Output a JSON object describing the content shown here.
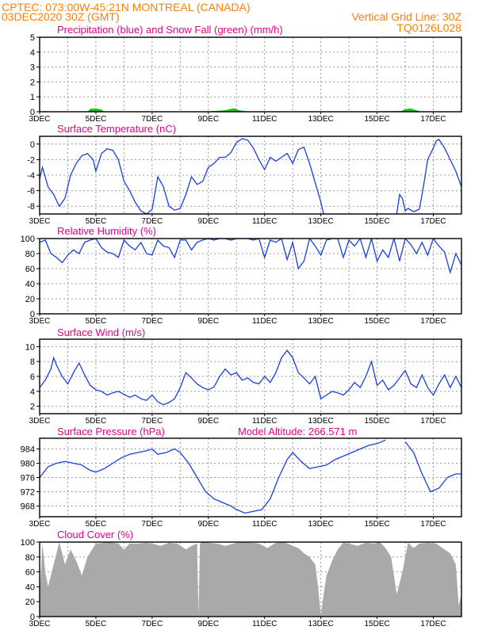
{
  "header": {
    "line1": "CPTEC:   073:00W-45:21N   MONTREAL (CANADA)",
    "line2": "03DEC2020 30Z (GMT)",
    "grid_note": "Vertical Grid Line: 30Z",
    "code": "TQ0126L028"
  },
  "colors": {
    "header_text": "#ff8000",
    "title_text": "#e8008c",
    "series_line": "#1a3fe0",
    "snow": "#1fbf1f",
    "cloud_fill": "#a9a9a9",
    "grid": "#9a9a9a"
  },
  "x_axis": {
    "tick_labels": [
      "3DEC",
      "5DEC",
      "7DEC",
      "9DEC",
      "11DEC",
      "13DEC",
      "15DEC",
      "17DEC"
    ],
    "range_days": [
      3,
      18
    ],
    "tick_days": [
      3,
      5,
      7,
      9,
      11,
      13,
      15,
      17
    ]
  },
  "chart_data": [
    {
      "id": "precip",
      "type": "area",
      "title": "Precipitation (blue) and Snow Fall (green) (mm/h)",
      "ylim": [
        0,
        5
      ],
      "yticks": [
        0,
        1,
        2,
        3,
        4,
        5
      ],
      "grid": true,
      "series": [
        {
          "name": "Precipitation",
          "color": "blue",
          "x": [
            3,
            4.8,
            5.0,
            5.2,
            9.0,
            9.7,
            9.9,
            10.2,
            13.8,
            16.0,
            16.4,
            18
          ],
          "values": [
            0,
            0,
            0.02,
            0,
            0,
            0.03,
            0.04,
            0,
            0,
            0.05,
            0,
            0
          ]
        },
        {
          "name": "Snow Fall",
          "color": "green",
          "x": [
            3,
            3.2,
            3.4,
            4.7,
            4.8,
            5.0,
            5.2,
            5.3,
            8.8,
            9.6,
            9.8,
            9.95,
            10.1,
            10.3,
            10.5,
            15.8,
            16.0,
            16.2,
            16.4,
            16.6,
            18
          ],
          "values": [
            0,
            0.05,
            0,
            0,
            0.2,
            0.22,
            0.15,
            0,
            0,
            0.1,
            0.2,
            0.22,
            0.1,
            0.05,
            0,
            0,
            0.18,
            0.22,
            0.1,
            0,
            0
          ]
        }
      ]
    },
    {
      "id": "temp",
      "type": "line",
      "title": "Surface Temperature (nC)",
      "ylim": [
        -9,
        1
      ],
      "yticks": [
        0,
        -2,
        -4,
        -6,
        -8
      ],
      "grid": true,
      "series": [
        {
          "x": [
            3.0,
            3.1,
            3.3,
            3.5,
            3.7,
            3.9,
            4.1,
            4.3,
            4.5,
            4.7,
            4.9,
            5.0,
            5.2,
            5.4,
            5.6,
            5.8,
            6.0,
            6.2,
            6.4,
            6.6,
            6.8,
            7.0,
            7.2,
            7.4,
            7.6,
            7.8,
            8.0,
            8.2,
            8.4,
            8.6,
            8.8,
            9.0,
            9.2,
            9.4,
            9.6,
            9.8,
            10.0,
            10.2,
            10.4,
            10.6,
            10.8,
            11.0,
            11.2,
            11.4,
            11.6,
            11.8,
            12.0,
            12.2,
            12.4,
            12.6,
            12.8,
            13.0,
            13.1
          ],
          "values": [
            -4.5,
            -3,
            -5.5,
            -6.5,
            -8,
            -7,
            -4,
            -2.5,
            -1.5,
            -1.2,
            -2,
            -3.5,
            -1.2,
            -0.6,
            -0.8,
            -2,
            -4.8,
            -6,
            -7.5,
            -8.6,
            -9,
            -8.4,
            -4.2,
            -5.5,
            -8,
            -8.5,
            -8.3,
            -6.5,
            -4.2,
            -5.2,
            -4.8,
            -3,
            -2.5,
            -1.7,
            -1.7,
            -1.1,
            0.2,
            0.7,
            0.5,
            -0.5,
            -2,
            -3.3,
            -1.7,
            -2.2,
            -1.7,
            -1.2,
            -2.5,
            -0.7,
            -0.4,
            -2.5,
            -5,
            -7.5,
            -9
          ]
        },
        {
          "x": [
            15.7,
            15.8,
            15.9,
            16.0,
            16.1,
            16.3,
            16.5,
            16.6,
            16.7,
            16.8,
            17.0,
            17.1,
            17.2,
            17.4,
            17.6,
            17.8,
            18.0
          ],
          "values": [
            -9,
            -6.5,
            -7,
            -8.6,
            -8.3,
            -8.7,
            -8.4,
            -6.5,
            -4.3,
            -2,
            -0.5,
            0.4,
            0.6,
            -0.5,
            -2,
            -3.5,
            -5.5
          ]
        }
      ]
    },
    {
      "id": "rh",
      "type": "line",
      "title": "Relative Humidity (%)",
      "ylim": [
        0,
        100
      ],
      "yticks": [
        0,
        20,
        40,
        60,
        80,
        100
      ],
      "grid": true,
      "series": [
        {
          "x": [
            3.0,
            3.2,
            3.4,
            3.6,
            3.8,
            4.0,
            4.2,
            4.4,
            4.6,
            4.8,
            5.0,
            5.2,
            5.4,
            5.6,
            5.8,
            6.0,
            6.2,
            6.4,
            6.6,
            6.8,
            7.0,
            7.2,
            7.4,
            7.6,
            7.8,
            8.0,
            8.2,
            8.4,
            8.6,
            8.8,
            9.0,
            9.2,
            9.4,
            9.6,
            9.8,
            10.0,
            10.2,
            10.4,
            10.6,
            10.8,
            11.0,
            11.2,
            11.4,
            11.6,
            11.8,
            12.0,
            12.2,
            12.4,
            12.6,
            12.8,
            13.0,
            13.2,
            13.4,
            13.6,
            13.8,
            14.0,
            14.2,
            14.4,
            14.6,
            14.8,
            15.0,
            15.2,
            15.4,
            15.6,
            15.8,
            16.0,
            16.2,
            16.4,
            16.6,
            16.8,
            17.0,
            17.2,
            17.4,
            17.6,
            17.8,
            18.0
          ],
          "values": [
            95,
            98,
            80,
            75,
            68,
            78,
            85,
            80,
            95,
            98,
            100,
            88,
            82,
            80,
            75,
            98,
            90,
            85,
            95,
            80,
            78,
            98,
            90,
            88,
            75,
            98,
            98,
            85,
            95,
            98,
            100,
            98,
            100,
            100,
            98,
            100,
            100,
            100,
            98,
            100,
            75,
            98,
            95,
            100,
            72,
            95,
            60,
            70,
            100,
            90,
            78,
            98,
            100,
            100,
            75,
            98,
            90,
            100,
            75,
            100,
            70,
            85,
            75,
            100,
            70,
            100,
            92,
            80,
            95,
            78,
            100,
            90,
            82,
            55,
            80,
            65
          ]
        }
      ]
    },
    {
      "id": "wind",
      "type": "line",
      "title": "Surface Wind (m/s)",
      "ylim": [
        1,
        11
      ],
      "yticks": [
        2,
        4,
        6,
        8,
        10
      ],
      "grid": true,
      "series": [
        {
          "x": [
            3.0,
            3.2,
            3.4,
            3.5,
            3.6,
            3.8,
            4.0,
            4.2,
            4.4,
            4.6,
            4.8,
            5.0,
            5.2,
            5.4,
            5.6,
            5.8,
            6.0,
            6.2,
            6.4,
            6.6,
            6.8,
            7.0,
            7.2,
            7.4,
            7.6,
            7.8,
            8.0,
            8.2,
            8.4,
            8.6,
            8.8,
            9.0,
            9.2,
            9.4,
            9.6,
            9.8,
            10.0,
            10.2,
            10.4,
            10.6,
            10.8,
            11.0,
            11.2,
            11.4,
            11.6,
            11.8,
            12.0,
            12.2,
            12.4,
            12.6,
            12.8,
            13.0,
            13.2,
            13.4,
            13.6,
            13.8,
            14.0,
            14.2,
            14.4,
            14.6,
            14.8,
            15.0,
            15.2,
            15.4,
            15.6,
            15.8,
            16.0,
            16.2,
            16.4,
            16.6,
            16.8,
            17.0,
            17.2,
            17.4,
            17.6,
            17.8,
            18.0
          ],
          "values": [
            4.5,
            5.5,
            7,
            8.5,
            7.5,
            6,
            5,
            6.5,
            7.8,
            6.2,
            4.8,
            4.2,
            4,
            3.5,
            3.8,
            4,
            3.6,
            3.2,
            3.5,
            3,
            2.8,
            3.5,
            2.6,
            2.2,
            2.5,
            3,
            4.5,
            6.5,
            5.8,
            5,
            4.5,
            4.2,
            4.6,
            6,
            7,
            6.2,
            6.5,
            5.5,
            5.8,
            5.2,
            5,
            6,
            5.2,
            6.5,
            8.5,
            9.5,
            8.5,
            6.5,
            5.8,
            5,
            6,
            3,
            3.5,
            4,
            3.8,
            3.5,
            4.2,
            5.2,
            4.5,
            6,
            8,
            4.8,
            5.5,
            4.2,
            4.8,
            5.8,
            6.8,
            5,
            4.5,
            6.2,
            4.5,
            3.5,
            5,
            6.2,
            4.5,
            6,
            4.5
          ]
        }
      ]
    },
    {
      "id": "pressure",
      "type": "line",
      "title": "Surface Pressure (hPa)",
      "annotation": "Model Altitude: 266.571  m",
      "ylim": [
        965,
        987
      ],
      "yticks": [
        968,
        972,
        976,
        980,
        984
      ],
      "grid": true,
      "series": [
        {
          "x": [
            3.0,
            3.3,
            3.6,
            3.9,
            4.2,
            4.5,
            4.8,
            5.0,
            5.3,
            5.6,
            5.9,
            6.2,
            6.5,
            6.8,
            7.0,
            7.2,
            7.5,
            7.8,
            8.0,
            8.3,
            8.6,
            8.9,
            9.2,
            9.5,
            9.8,
            10.0,
            10.3,
            10.6,
            10.9,
            11.2,
            11.5,
            11.8,
            12.0,
            12.3,
            12.6,
            12.9,
            13.2,
            13.5,
            13.8,
            14.1,
            14.4,
            14.7,
            15.0,
            15.3
          ],
          "values": [
            976,
            979,
            980,
            980.5,
            980,
            979.5,
            978,
            977.5,
            978.5,
            980,
            981.5,
            982.5,
            983,
            983.5,
            984,
            982.5,
            983,
            984,
            983,
            980,
            976,
            972,
            970,
            969,
            968,
            967,
            966,
            966.5,
            967,
            970,
            976,
            981,
            983,
            980.5,
            978.5,
            979,
            979.5,
            981,
            982,
            983,
            984,
            985,
            985.5,
            986.5
          ]
        },
        {
          "x": [
            16.0,
            16.3,
            16.6,
            16.9,
            17.2,
            17.5,
            17.8,
            18.0
          ],
          "values": [
            986,
            983,
            977,
            972,
            973,
            976,
            977,
            977
          ]
        }
      ]
    },
    {
      "id": "cloud",
      "type": "area",
      "title": "Cloud Cover (%)",
      "ylim": [
        0,
        100
      ],
      "yticks": [
        0,
        20,
        40,
        60,
        80,
        100
      ],
      "grid": true,
      "series": [
        {
          "x": [
            3.0,
            3.1,
            3.2,
            3.3,
            3.5,
            3.7,
            3.9,
            4.1,
            4.3,
            4.5,
            4.7,
            5.0,
            5.3,
            5.5,
            5.8,
            6.0,
            6.2,
            6.5,
            6.8,
            7.0,
            7.3,
            7.6,
            7.9,
            8.2,
            8.4,
            8.6,
            8.65,
            8.7,
            8.8,
            9.0,
            9.3,
            9.6,
            10.0,
            10.4,
            10.8,
            11.1,
            11.4,
            11.7,
            12.0,
            12.2,
            12.4,
            12.6,
            12.8,
            12.9,
            13.0,
            13.1,
            13.2,
            13.4,
            13.6,
            13.8,
            14.0,
            14.3,
            14.6,
            14.9,
            15.1,
            15.3,
            15.5,
            15.7,
            15.9,
            16.1,
            16.3,
            16.5,
            16.8,
            17.1,
            17.4,
            17.6,
            17.8,
            17.9,
            18.0
          ],
          "values": [
            30,
            98,
            60,
            40,
            70,
            100,
            70,
            90,
            75,
            55,
            80,
            98,
            99,
            100,
            98,
            90,
            98,
            98,
            99,
            98,
            95,
            99,
            98,
            90,
            95,
            98,
            2,
            98,
            100,
            99,
            98,
            95,
            99,
            100,
            98,
            92,
            99,
            100,
            95,
            92,
            85,
            80,
            70,
            40,
            2,
            30,
            55,
            75,
            90,
            99,
            98,
            95,
            99,
            98,
            100,
            92,
            80,
            30,
            60,
            99,
            92,
            98,
            99,
            98,
            90,
            85,
            70,
            15,
            30
          ]
        }
      ]
    }
  ]
}
